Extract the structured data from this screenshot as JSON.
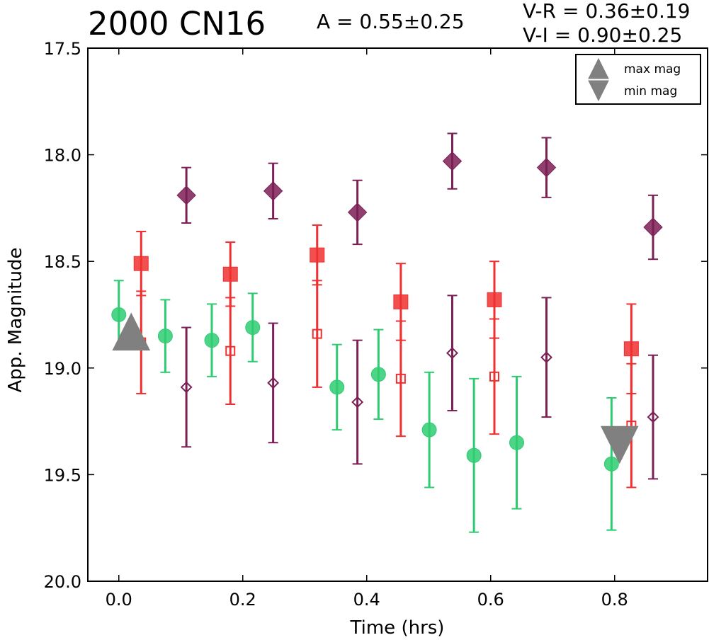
{
  "chart_data": {
    "type": "scatter",
    "title": "2000 CN16",
    "annotations": {
      "amplitude": "A  = 0.55±0.25",
      "color_vr": "V-R = 0.36±0.19",
      "color_vi": "V-I  = 0.90±0.25"
    },
    "xlabel": "Time (hrs)",
    "ylabel": "App. Magnitude",
    "xlim": [
      -0.05,
      0.95
    ],
    "ylim": [
      20.0,
      17.5
    ],
    "y_inverted": true,
    "xticks": [
      "0.0",
      "0.2",
      "0.4",
      "0.6",
      "0.8"
    ],
    "yticks": [
      "17.5",
      "18.0",
      "18.5",
      "19.0",
      "19.5",
      "20.0"
    ],
    "grid": false,
    "legend": {
      "position": "top-right",
      "entries": [
        {
          "label": "max mag",
          "marker": "triangle-up",
          "color": "#808080"
        },
        {
          "label": "min mag",
          "marker": "triangle-down",
          "color": "#808080"
        }
      ]
    },
    "series": [
      {
        "marker": "circle",
        "filled": true,
        "color": "#2ecc71",
        "points": [
          {
            "x": 0.0,
            "y": 18.75,
            "err": 0.16
          },
          {
            "x": 0.075,
            "y": 18.85,
            "err": 0.17
          },
          {
            "x": 0.15,
            "y": 18.87,
            "err": 0.17
          },
          {
            "x": 0.216,
            "y": 18.81,
            "err": 0.16
          },
          {
            "x": 0.352,
            "y": 19.09,
            "err": 0.2
          },
          {
            "x": 0.419,
            "y": 19.03,
            "err": 0.21
          },
          {
            "x": 0.501,
            "y": 19.29,
            "err": 0.27
          },
          {
            "x": 0.573,
            "y": 19.41,
            "err": 0.36
          },
          {
            "x": 0.642,
            "y": 19.35,
            "err": 0.31
          },
          {
            "x": 0.795,
            "y": 19.45,
            "err": 0.31
          }
        ]
      },
      {
        "marker": "square",
        "filled": true,
        "color": "#f03030",
        "points": [
          {
            "x": 0.036,
            "y": 18.51,
            "err": 0.15
          },
          {
            "x": 0.18,
            "y": 18.56,
            "err": 0.15
          },
          {
            "x": 0.32,
            "y": 18.47,
            "err": 0.14
          },
          {
            "x": 0.455,
            "y": 18.69,
            "err": 0.18
          },
          {
            "x": 0.606,
            "y": 18.68,
            "err": 0.18
          },
          {
            "x": 0.827,
            "y": 18.91,
            "err": 0.21
          }
        ]
      },
      {
        "marker": "square",
        "filled": false,
        "color": "#f03030",
        "points": [
          {
            "x": 0.036,
            "y": 18.88,
            "err": 0.24
          },
          {
            "x": 0.18,
            "y": 18.92,
            "err": 0.25
          },
          {
            "x": 0.32,
            "y": 18.84,
            "err": 0.25
          },
          {
            "x": 0.455,
            "y": 19.05,
            "err": 0.27
          },
          {
            "x": 0.606,
            "y": 19.04,
            "err": 0.27
          },
          {
            "x": 0.827,
            "y": 19.27,
            "err": 0.29
          }
        ]
      },
      {
        "marker": "diamond",
        "filled": true,
        "color": "#7b1f55",
        "points": [
          {
            "x": 0.109,
            "y": 18.19,
            "err": 0.13
          },
          {
            "x": 0.249,
            "y": 18.17,
            "err": 0.13
          },
          {
            "x": 0.385,
            "y": 18.27,
            "err": 0.15
          },
          {
            "x": 0.538,
            "y": 18.03,
            "err": 0.13
          },
          {
            "x": 0.69,
            "y": 18.06,
            "err": 0.14
          },
          {
            "x": 0.862,
            "y": 18.34,
            "err": 0.15
          }
        ]
      },
      {
        "marker": "diamond",
        "filled": false,
        "color": "#7b1f55",
        "points": [
          {
            "x": 0.109,
            "y": 19.09,
            "err": 0.28
          },
          {
            "x": 0.249,
            "y": 19.07,
            "err": 0.28
          },
          {
            "x": 0.385,
            "y": 19.16,
            "err": 0.29
          },
          {
            "x": 0.538,
            "y": 18.93,
            "err": 0.27
          },
          {
            "x": 0.69,
            "y": 18.95,
            "err": 0.28
          },
          {
            "x": 0.862,
            "y": 19.23,
            "err": 0.29
          }
        ]
      }
    ],
    "extrema": [
      {
        "label": "max mag",
        "marker": "triangle-up",
        "color": "#808080",
        "x": 0.02,
        "y": 18.83
      },
      {
        "label": "min mag",
        "marker": "triangle-down",
        "color": "#808080",
        "x": 0.808,
        "y": 19.36
      }
    ]
  }
}
